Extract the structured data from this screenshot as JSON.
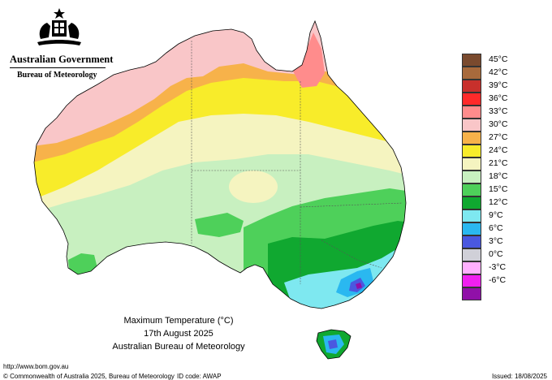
{
  "header": {
    "government": "Australian Government",
    "bureau": "Bureau of Meteorology"
  },
  "legend": {
    "items": [
      {
        "label": "45°C",
        "color": "#7a4a2e"
      },
      {
        "label": "42°C",
        "color": "#a86a3c"
      },
      {
        "label": "39°C",
        "color": "#c8302c"
      },
      {
        "label": "36°C",
        "color": "#ff2a2a"
      },
      {
        "label": "33°C",
        "color": "#ff8c8c"
      },
      {
        "label": "30°C",
        "color": "#f9c6c8"
      },
      {
        "label": "27°C",
        "color": "#f7b24a"
      },
      {
        "label": "24°C",
        "color": "#f8ec2a"
      },
      {
        "label": "21°C",
        "color": "#f5f4c0"
      },
      {
        "label": "18°C",
        "color": "#c8f0c0"
      },
      {
        "label": "15°C",
        "color": "#4ed05a"
      },
      {
        "label": "12°C",
        "color": "#10a830"
      },
      {
        "label": "9°C",
        "color": "#7ee8f0"
      },
      {
        "label": "6°C",
        "color": "#2ab8f0"
      },
      {
        "label": "3°C",
        "color": "#4a58e0"
      },
      {
        "label": "0°C",
        "color": "#d0d0d8"
      },
      {
        "label": "-3°C",
        "color": "#ffb0ff"
      },
      {
        "label": "-6°C",
        "color": "#f020f0"
      },
      {
        "label": "",
        "color": "#9010a8"
      }
    ]
  },
  "caption": {
    "title": "Maximum Temperature (°C)",
    "date": "17th August 2025",
    "agency": "Australian Bureau of Meteorology"
  },
  "footer": {
    "url": "http://www.bom.gov.au",
    "copyright": "© Commonwealth of Australia 2025, Bureau of Meteorology",
    "id_code": "ID code: AWAP",
    "issued": "Issued: 18/08/2025"
  }
}
